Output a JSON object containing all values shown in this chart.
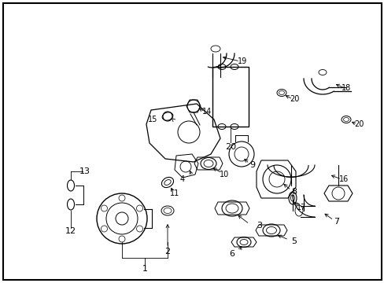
{
  "background_color": "#ffffff",
  "border_color": "#000000",
  "text_color": "#000000",
  "fig_width": 4.89,
  "fig_height": 3.6,
  "dpi": 100,
  "label_fontsize": 8,
  "lw": 0.7
}
